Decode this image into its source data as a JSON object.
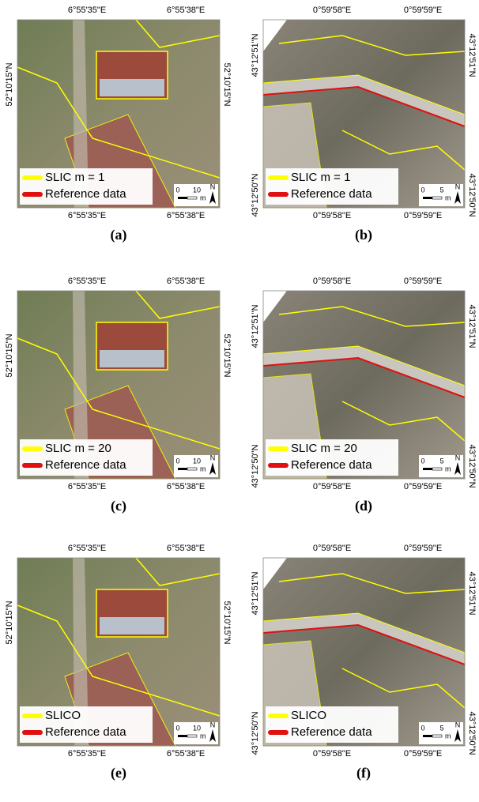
{
  "panels": [
    {
      "caption": "(a)",
      "top_labels": [
        "6°55'35\"E",
        "6°55'38\"E"
      ],
      "bottom_labels": [
        "6°55'35\"E",
        "6°55'38\"E"
      ],
      "left_labels": [
        "52°10'15\"N"
      ],
      "right_labels": [
        "52°10'15\"N"
      ],
      "legend": [
        "SLIC m = 1",
        "Reference data"
      ],
      "scale": [
        "0",
        "10",
        "m"
      ],
      "north": "N"
    },
    {
      "caption": "(b)",
      "top_labels": [
        "0°59'58\"E",
        "0°59'59\"E"
      ],
      "bottom_labels": [
        "0°59'58\"E",
        "0°59'59\"E"
      ],
      "left_labels": [
        "43°12'51\"N",
        "43°12'50\"N"
      ],
      "right_labels": [
        "43°12'51\"N",
        "43°12'50\"N"
      ],
      "legend": [
        "SLIC m = 1",
        "Reference data"
      ],
      "scale": [
        "0",
        "5",
        "m"
      ],
      "north": "N"
    },
    {
      "caption": "(c)",
      "top_labels": [
        "6°55'35\"E",
        "6°55'38\"E"
      ],
      "bottom_labels": [
        "6°55'35\"E",
        "6°55'38\"E"
      ],
      "left_labels": [
        "52°10'15\"N"
      ],
      "right_labels": [
        "52°10'15\"N"
      ],
      "legend": [
        "SLIC m = 20",
        "Reference data"
      ],
      "scale": [
        "0",
        "10",
        "m"
      ],
      "north": "N"
    },
    {
      "caption": "(d)",
      "top_labels": [
        "0°59'58\"E",
        "0°59'59\"E"
      ],
      "bottom_labels": [
        "0°59'58\"E",
        "0°59'59\"E"
      ],
      "left_labels": [
        "43°12'51\"N",
        "43°12'50\"N"
      ],
      "right_labels": [
        "43°12'51\"N",
        "43°12'50\"N"
      ],
      "legend": [
        "SLIC m = 20",
        "Reference data"
      ],
      "scale": [
        "0",
        "5",
        "m"
      ],
      "north": "N"
    },
    {
      "caption": "(e)",
      "top_labels": [
        "6°55'35\"E",
        "6°55'38\"E"
      ],
      "bottom_labels": [
        "6°55'35\"E",
        "6°55'38\"E"
      ],
      "left_labels": [
        "52°10'15\"N"
      ],
      "right_labels": [
        "52°10'15\"N"
      ],
      "legend": [
        "SLICO",
        "Reference data"
      ],
      "scale": [
        "0",
        "10",
        "m"
      ],
      "north": "N"
    },
    {
      "caption": "(f)",
      "top_labels": [
        "0°59'58\"E",
        "0°59'59\"E"
      ],
      "bottom_labels": [
        "0°59'58\"E",
        "0°59'59\"E"
      ],
      "left_labels": [
        "43°12'51\"N",
        "43°12'50\"N"
      ],
      "right_labels": [
        "43°12'51\"N",
        "43°12'50\"N"
      ],
      "legend": [
        "SLICO",
        "Reference data"
      ],
      "scale": [
        "0",
        "5",
        "m"
      ],
      "north": "N"
    }
  ]
}
